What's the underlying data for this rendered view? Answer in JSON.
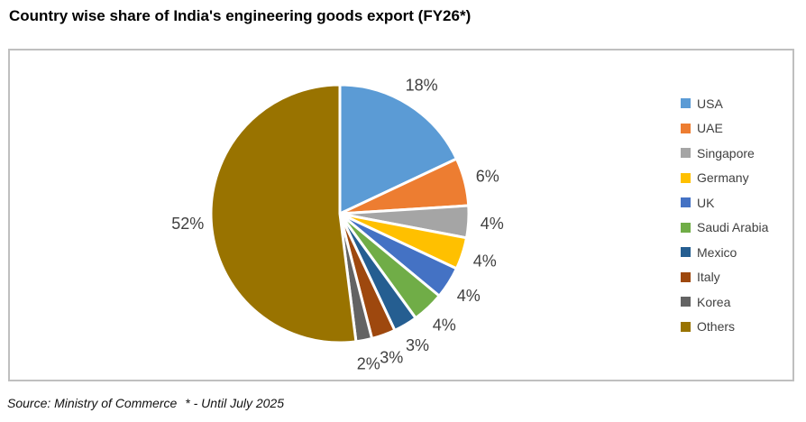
{
  "title": "Country wise share of India's engineering goods export (FY26*)",
  "footer": {
    "source": "Source: Ministry of Commerce",
    "note": "* - Until July 2025"
  },
  "chart_data": {
    "type": "pie",
    "title": "Country wise share of India's engineering goods export (FY26*)",
    "unit": "percent of export share",
    "categories": [
      "USA",
      "UAE",
      "Singapore",
      "Germany",
      "UK",
      "Saudi Arabia",
      "Mexico",
      "Italy",
      "Korea",
      "Others"
    ],
    "values": [
      18,
      6,
      4,
      4,
      4,
      4,
      3,
      3,
      2,
      52
    ],
    "labels": [
      "18%",
      "6%",
      "4%",
      "4%",
      "4%",
      "4%",
      "3%",
      "3%",
      "2%",
      "52%"
    ],
    "colors": [
      "#5B9BD5",
      "#ED7D31",
      "#A5A5A5",
      "#FFC000",
      "#4472C4",
      "#70AD47",
      "#255E91",
      "#9E480E",
      "#636363",
      "#997300"
    ],
    "slice_border_color": "#FFFFFF",
    "label_color": "#404040",
    "legend_position": "right",
    "start_angle_deg": 0,
    "direction": "clockwise",
    "source_note": "Source: Ministry of Commerce * - Until July 2025"
  }
}
